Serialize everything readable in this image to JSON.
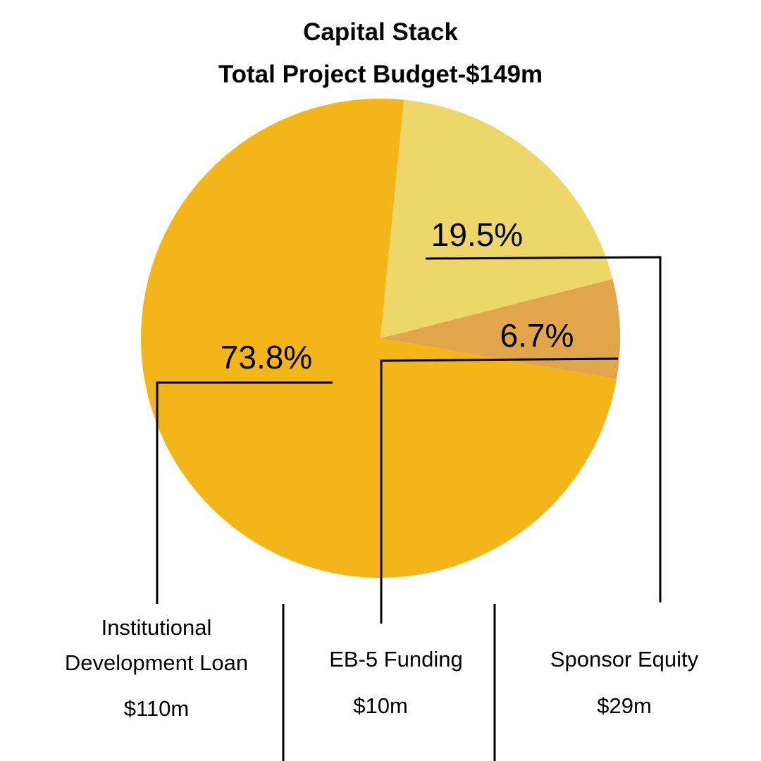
{
  "chart_data": {
    "type": "pie",
    "title": "Capital Stack",
    "subtitle": "Total Project Budget-$149m",
    "slices": [
      {
        "label_line1": "Institutional",
        "label_line2": "Development Loan",
        "amount": "$110m",
        "value": 110,
        "percent": 73.8,
        "percent_label": "73.8%",
        "color": "#F4B518"
      },
      {
        "label_line1": "EB-5 Funding",
        "label_line2": "",
        "amount": "$10m",
        "value": 10,
        "percent": 6.7,
        "percent_label": "6.7%",
        "color": "#E1A54A"
      },
      {
        "label_line1": "Sponsor Equity",
        "label_line2": "",
        "amount": "$29m",
        "value": 29,
        "percent": 19.5,
        "percent_label": "19.5%",
        "color": "#EED769"
      }
    ]
  }
}
